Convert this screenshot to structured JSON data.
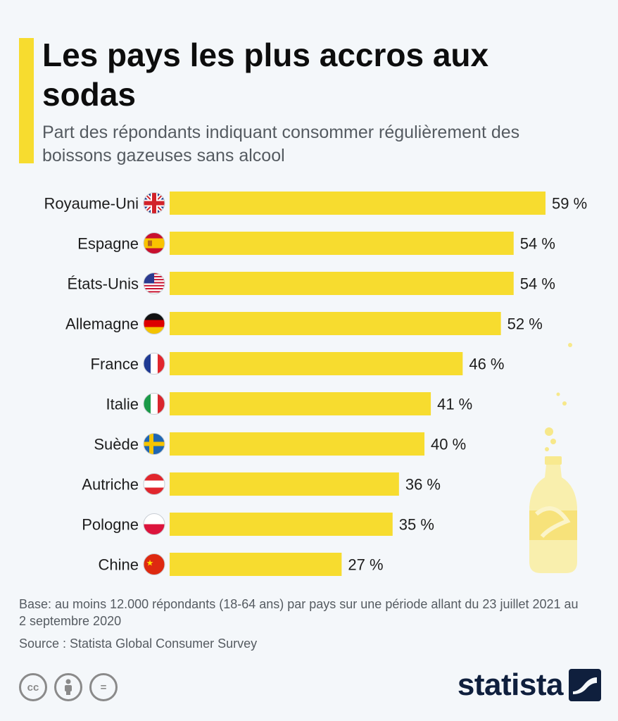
{
  "header": {
    "title": "Les pays les plus accros aux sodas",
    "subtitle": "Part des répondants indiquant consommer régulièrement des boissons gazeuses sans alcool"
  },
  "chart_data": {
    "type": "bar",
    "orientation": "horizontal",
    "categories": [
      "Royaume-Uni",
      "Espagne",
      "États-Unis",
      "Allemagne",
      "France",
      "Italie",
      "Suède",
      "Autriche",
      "Pologne",
      "Chine"
    ],
    "values": [
      59,
      54,
      54,
      52,
      46,
      41,
      40,
      36,
      35,
      27
    ],
    "value_labels": [
      "59 %",
      "54 %",
      "54 %",
      "52 %",
      "46 %",
      "41 %",
      "40 %",
      "36 %",
      "35 %",
      "27 %"
    ],
    "flags": [
      "uk-flag-icon",
      "spain-flag-icon",
      "usa-flag-icon",
      "germany-flag-icon",
      "france-flag-icon",
      "italy-flag-icon",
      "sweden-flag-icon",
      "austria-flag-icon",
      "poland-flag-icon",
      "china-flag-icon"
    ],
    "xlim": [
      0,
      59
    ],
    "bar_color": "#f7dc2f",
    "grid": false
  },
  "footer": {
    "note": "Base: au moins 12.000 répondants (18-64 ans) par pays sur une période allant du 23 juillet 2021 au 2 septembre 2020",
    "source": "Source : Statista Global Consumer Survey",
    "license_icons": [
      "cc-icon",
      "attribution-icon",
      "no-derivatives-icon"
    ],
    "license_cc": "cc",
    "license_eq": "=",
    "brand": "statista"
  },
  "colors": {
    "accent": "#f7dc2f",
    "background": "#f4f7fa",
    "brand": "#0f1f3d"
  }
}
